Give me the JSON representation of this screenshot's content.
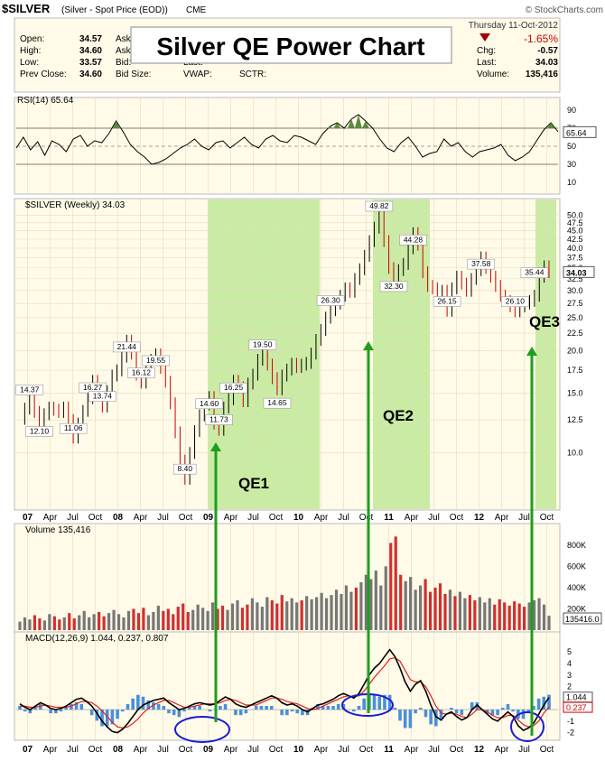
{
  "header": {
    "symbol": "$SILVER",
    "description": "(Silver - Spot Price (EOD))",
    "exchange": "CME",
    "watermark": "© StockCharts.com",
    "date": "Thursday  11-Oct-2012",
    "change_pct": "-1.65%",
    "stats": [
      {
        "label": "Open:",
        "value": "34.57"
      },
      {
        "label": "High:",
        "value": "34.60"
      },
      {
        "label": "Low:",
        "value": "33.57"
      },
      {
        "label": "Prev Close:",
        "value": "34.60"
      }
    ],
    "mid_labels": [
      "Ask:",
      "Ask Size:",
      "Bid:",
      "Bid Size:"
    ],
    "mid_labels2": [
      "Last:",
      "VWAP:"
    ],
    "sctr_label": "SCTR:",
    "right_stats": [
      {
        "label": "Chg:",
        "value": "-0.57"
      },
      {
        "label": "Last:",
        "value": "34.03"
      },
      {
        "label": "Volume:",
        "value": "135,416"
      }
    ]
  },
  "banner_title": "Silver QE Power Chart",
  "colors": {
    "panel_bg": "#FFFBE8",
    "qe_band": "#B8E68E",
    "arrow": "#1E9E1E",
    "circle": "#1A1AD6",
    "rsi_fill": "#5C8A3E",
    "volume_up": "#777777",
    "volume_down": "#D03030",
    "macd_line": "#000000",
    "signal_line": "#E02020",
    "histogram": "#4A90D9",
    "change_down": "#CC0000"
  },
  "chart_data": [
    {
      "type": "line",
      "panel": "rsi",
      "title": "RSI(14) 65.64",
      "y_ticks": [
        10,
        30,
        50,
        70,
        90
      ],
      "ylim": [
        0,
        100
      ],
      "overbought": 70,
      "oversold": 30,
      "last_value": "65.64",
      "values": [
        48,
        60,
        46,
        55,
        40,
        56,
        52,
        44,
        58,
        62,
        50,
        56,
        54,
        64,
        78,
        66,
        52,
        44,
        38,
        30,
        32,
        36,
        42,
        48,
        52,
        58,
        50,
        46,
        54,
        56,
        48,
        54,
        60,
        52,
        48,
        58,
        62,
        56,
        54,
        62,
        60,
        56,
        52,
        64,
        72,
        76,
        70,
        80,
        85,
        78,
        70,
        58,
        48,
        44,
        54,
        60,
        50,
        38,
        42,
        44,
        58,
        50,
        54,
        44,
        38,
        44,
        46,
        48,
        52,
        40,
        34,
        38,
        44,
        56,
        68,
        76,
        66
      ]
    },
    {
      "type": "line",
      "panel": "price",
      "title": "$SILVER (Weekly) 34.03",
      "x_ticks": [
        "07",
        "Apr",
        "Jul",
        "Oct",
        "08",
        "Apr",
        "Jul",
        "Oct",
        "09",
        "Apr",
        "Jul",
        "Oct",
        "10",
        "Apr",
        "Jul",
        "Oct",
        "11",
        "Apr",
        "Jul",
        "Oct",
        "12",
        "Apr",
        "Jul",
        "Oct"
      ],
      "y_ticks": [
        10.0,
        12.5,
        15.0,
        17.5,
        20.0,
        22.5,
        25.0,
        27.5,
        30.0,
        32.5,
        35.0,
        37.5,
        40.0,
        42.5,
        45.0,
        47.5,
        50.0
      ],
      "ylim": [
        7.0,
        52.0
      ],
      "scale": "log",
      "last_value": "34.03",
      "annotations": [
        "14.37",
        "12.10",
        "11.06",
        "16.27",
        "13.74",
        "21.44",
        "16.12",
        "19.55",
        "8.40",
        "14.60",
        "11.73",
        "16.25",
        "19.50",
        "14.65",
        "49.82",
        "32.30",
        "26.30",
        "44.28",
        "26.15",
        "37.58",
        "26.10",
        "35.44"
      ],
      "qe_periods": [
        "QE1",
        "QE2",
        "QE3"
      ],
      "values": [
        12.6,
        13.5,
        14.4,
        13.2,
        12.1,
        13.0,
        13.6,
        13.4,
        13.2,
        13.6,
        12.5,
        11.1,
        12.2,
        13.3,
        14.5,
        16.3,
        14.8,
        13.7,
        15.2,
        16.9,
        17.5,
        19.2,
        21.4,
        19.6,
        17.0,
        16.1,
        17.6,
        18.8,
        19.5,
        17.8,
        16.2,
        14.0,
        11.5,
        9.5,
        8.4,
        10.0,
        11.6,
        12.9,
        13.9,
        14.6,
        12.2,
        11.7,
        13.6,
        14.4,
        16.3,
        15.6,
        14.2,
        16.0,
        17.0,
        18.8,
        19.5,
        18.2,
        16.6,
        15.4,
        16.9,
        17.6,
        18.3,
        17.9,
        18.2,
        18.4,
        19.6,
        21.5,
        23.0,
        25.0,
        26.3,
        27.5,
        29.0,
        30.5,
        29.8,
        32.5,
        34.7,
        38.0,
        42.0,
        46.0,
        49.8,
        42.0,
        35.0,
        32.3,
        34.5,
        36.0,
        40.0,
        44.3,
        41.0,
        34.0,
        31.0,
        30.5,
        28.5,
        30.0,
        26.2,
        30.5,
        33.0,
        31.5,
        30.0,
        32.5,
        34.5,
        37.6,
        35.0,
        33.0,
        31.0,
        29.0,
        28.0,
        27.0,
        26.1,
        27.0,
        27.5,
        28.0,
        29.0,
        33.0,
        35.4,
        34.0
      ]
    },
    {
      "type": "bar",
      "panel": "volume",
      "title": "Volume 135,416",
      "y_ticks": [
        "200K",
        "400K",
        "600K",
        "800K"
      ],
      "ylim": [
        0,
        900000
      ],
      "last_value": "135416.0",
      "values": [
        80000,
        120000,
        100000,
        140000,
        110000,
        90000,
        150000,
        130000,
        100000,
        120000,
        160000,
        110000,
        140000,
        180000,
        120000,
        150000,
        170000,
        130000,
        160000,
        190000,
        150000,
        120000,
        180000,
        200000,
        160000,
        210000,
        140000,
        170000,
        230000,
        180000,
        200000,
        150000,
        220000,
        250000,
        170000,
        190000,
        240000,
        210000,
        180000,
        260000,
        200000,
        230000,
        190000,
        250000,
        280000,
        210000,
        240000,
        300000,
        260000,
        220000,
        310000,
        280000,
        250000,
        330000,
        270000,
        300000,
        260000,
        280000,
        320000,
        290000,
        310000,
        350000,
        300000,
        330000,
        380000,
        340000,
        420000,
        360000,
        400000,
        450000,
        520000,
        480000,
        560000,
        420000,
        600000,
        820000,
        880000,
        520000,
        460000,
        500000,
        380000,
        420000,
        480000,
        360000,
        400000,
        440000,
        340000,
        380000,
        320000,
        360000,
        300000,
        330000,
        280000,
        310000,
        260000,
        300000,
        240000,
        290000,
        260000,
        230000,
        270000,
        250000,
        220000,
        260000,
        280000,
        300000,
        240000,
        135416
      ]
    },
    {
      "type": "line",
      "panel": "macd",
      "title": "MACD(12,26,9) 1.044, 0.237, 0.807",
      "y_ticks": [
        -2,
        -1,
        0,
        1,
        2,
        3,
        4,
        5
      ],
      "ylim": [
        -2.5,
        5.8
      ],
      "series": [
        {
          "name": "MACD",
          "values": [
            0.5,
            0.2,
            0.0,
            0.3,
            0.6,
            0.4,
            0.1,
            0.0,
            0.1,
            0.3,
            0.6,
            0.9,
            1.0,
            0.7,
            0.3,
            -0.3,
            -1.0,
            -1.5,
            -1.9,
            -2.0,
            -1.7,
            -1.2,
            -0.6,
            0.0,
            0.4,
            0.6,
            0.8,
            0.9,
            1.0,
            0.6,
            0.3,
            0.0,
            0.1,
            0.3,
            0.5,
            0.6,
            0.5,
            0.4,
            0.5,
            0.8,
            1.1,
            0.9,
            0.5,
            0.3,
            0.2,
            0.4,
            0.6,
            0.8,
            1.0,
            1.2,
            1.0,
            0.6,
            0.4,
            0.5,
            0.3,
            0.0,
            -0.2,
            0.1,
            0.4,
            0.5,
            0.7,
            0.9,
            1.2,
            1.4,
            1.2,
            1.0,
            1.4,
            2.2,
            3.0,
            3.6,
            4.0,
            4.6,
            5.2,
            4.6,
            3.6,
            2.4,
            1.6,
            2.2,
            2.5,
            1.6,
            0.4,
            -0.6,
            -0.9,
            -0.4,
            -0.2,
            -0.6,
            -0.9,
            -0.7,
            0.0,
            0.4,
            0.0,
            -0.4,
            -0.8,
            -1.0,
            -0.6,
            -0.2,
            -0.6,
            -1.4,
            -1.8,
            -1.6,
            -1.2,
            -0.4,
            0.4,
            1.044
          ]
        },
        {
          "name": "Signal",
          "values": [
            0.3,
            0.3,
            0.2,
            0.2,
            0.3,
            0.4,
            0.3,
            0.2,
            0.2,
            0.2,
            0.3,
            0.5,
            0.7,
            0.7,
            0.6,
            0.3,
            -0.1,
            -0.6,
            -1.1,
            -1.5,
            -1.6,
            -1.5,
            -1.2,
            -0.8,
            -0.3,
            0.1,
            0.4,
            0.6,
            0.8,
            0.8,
            0.6,
            0.4,
            0.2,
            0.2,
            0.3,
            0.4,
            0.5,
            0.5,
            0.5,
            0.6,
            0.8,
            0.9,
            0.8,
            0.6,
            0.4,
            0.4,
            0.4,
            0.6,
            0.8,
            1.0,
            1.0,
            0.9,
            0.7,
            0.6,
            0.5,
            0.3,
            0.1,
            0.0,
            0.1,
            0.3,
            0.5,
            0.7,
            0.9,
            1.1,
            1.2,
            1.1,
            1.2,
            1.6,
            2.2,
            2.8,
            3.3,
            3.8,
            4.4,
            4.5,
            4.2,
            3.4,
            2.6,
            2.4,
            2.4,
            2.0,
            1.2,
            0.3,
            -0.3,
            -0.4,
            -0.3,
            -0.4,
            -0.6,
            -0.7,
            -0.4,
            0.0,
            0.0,
            -0.2,
            -0.5,
            -0.7,
            -0.7,
            -0.5,
            -0.5,
            -0.9,
            -1.3,
            -1.5,
            -1.4,
            -1.0,
            -0.3,
            0.237
          ]
        }
      ],
      "last_values": {
        "macd": "1.044",
        "signal": "0.237",
        "histogram": "0.807"
      }
    }
  ],
  "labels": {
    "qe1": "QE1",
    "qe2": "QE2",
    "qe3": "QE3"
  }
}
